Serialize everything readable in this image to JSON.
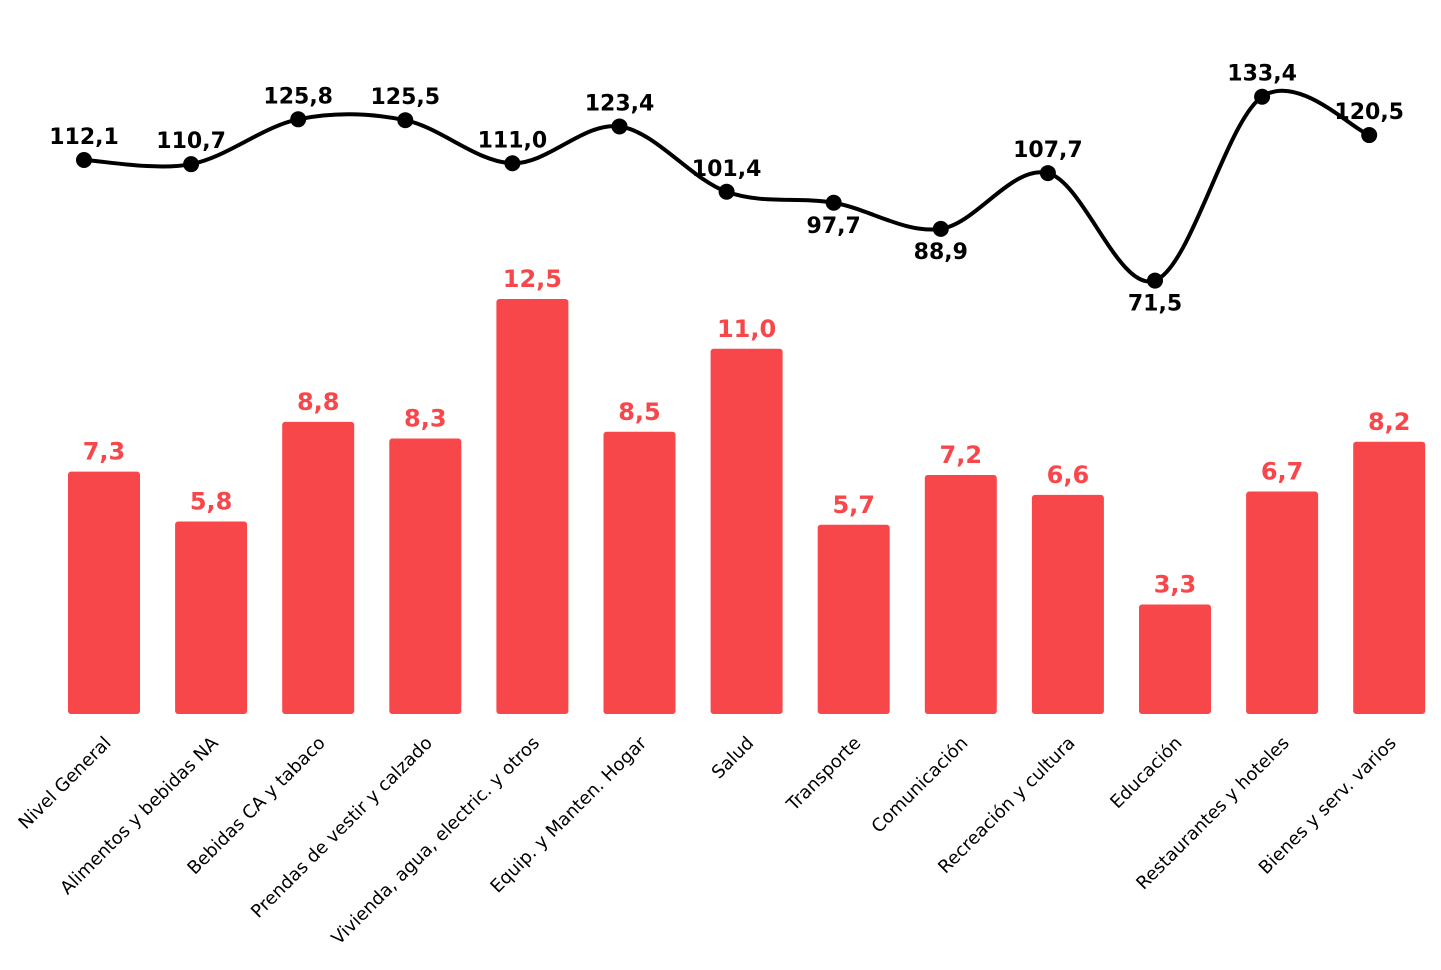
{
  "chart_data": {
    "type": "bar",
    "title": "",
    "xlabel": "",
    "ylabel": "",
    "grid": false,
    "legend": "none",
    "categories": [
      "Nivel General",
      "Alimentos y bebidas NA",
      "Bebidas CA y tabaco",
      "Prendas de vestir y calzado",
      "Vivienda, agua, electric. y otros",
      "Equip. y Manten. Hogar",
      "Salud",
      "Transporte",
      "Comunicación",
      "Recreación y cultura",
      "Educación",
      "Restaurantes y hoteles",
      "Bienes y serv. varios"
    ],
    "series": [
      {
        "type": "bar",
        "color": "#f8474a",
        "values": [
          7.3,
          5.8,
          8.8,
          8.3,
          12.5,
          8.5,
          11.0,
          5.7,
          7.2,
          6.6,
          3.3,
          6.7,
          8.2
        ],
        "value_labels": [
          "7,3",
          "5,8",
          "8,8",
          "8,3",
          "12,5",
          "8,5",
          "11,0",
          "5,7",
          "7,2",
          "6,6",
          "3,3",
          "6,7",
          "8,2"
        ]
      },
      {
        "type": "line",
        "color": "#000000",
        "smooth": true,
        "values": [
          112.1,
          110.7,
          125.8,
          125.5,
          111.0,
          123.4,
          101.4,
          97.7,
          88.9,
          107.7,
          71.5,
          133.4,
          120.5
        ],
        "value_labels": [
          "112,1",
          "110,7",
          "125,8",
          "125,5",
          "111,0",
          "123,4",
          "101,4",
          "97,7",
          "88,9",
          "107,7",
          "71,5",
          "133,4",
          "120,5"
        ],
        "label_placement": [
          "above",
          "above",
          "above",
          "above",
          "above",
          "above",
          "above",
          "below",
          "below",
          "above",
          "below",
          "above",
          "above"
        ]
      }
    ]
  }
}
